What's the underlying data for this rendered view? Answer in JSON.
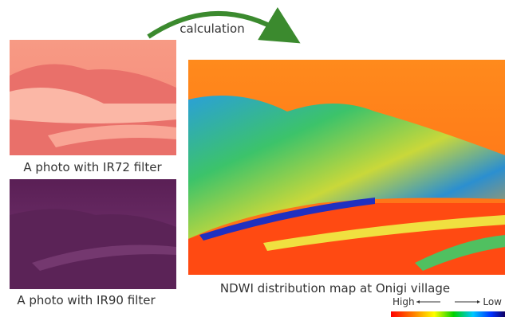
{
  "arrow_label": "calculation",
  "panels": [
    {
      "caption": "A photo with IR72 filter"
    },
    {
      "caption": "A photo with IR90 filter"
    },
    {
      "caption": "NDWI distribution map at Onigi village"
    }
  ],
  "legend": {
    "high": "High",
    "low": "Low"
  }
}
